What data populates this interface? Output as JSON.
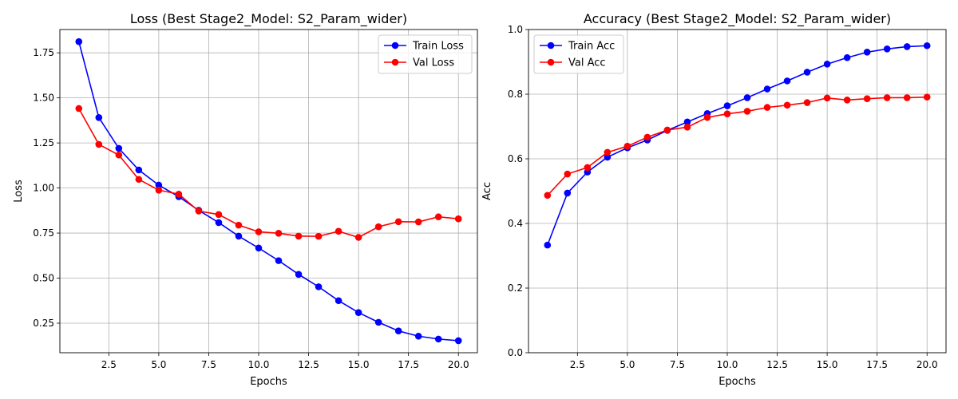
{
  "chart_data": [
    {
      "type": "line",
      "title": "Loss (Best Stage2_Model: S2_Param_wider)",
      "xlabel": "Epochs",
      "ylabel": "Loss",
      "xlim": [
        0.05,
        20.95
      ],
      "ylim": [
        0.0862,
        1.8792
      ],
      "xticks": [
        2.5,
        5.0,
        7.5,
        10.0,
        12.5,
        15.0,
        17.5,
        20.0
      ],
      "xtick_labels": [
        "2.5",
        "5.0",
        "7.5",
        "10.0",
        "12.5",
        "15.0",
        "17.5",
        "20.0"
      ],
      "yticks": [
        0.25,
        0.5,
        0.75,
        1.0,
        1.25,
        1.5,
        1.75
      ],
      "ytick_labels": [
        "0.25",
        "0.50",
        "0.75",
        "1.00",
        "1.25",
        "1.50",
        "1.75"
      ],
      "grid": true,
      "legend_position": "top-right",
      "x": [
        1,
        2,
        3,
        4,
        5,
        6,
        7,
        8,
        9,
        10,
        11,
        12,
        13,
        14,
        15,
        16,
        17,
        18,
        19,
        20
      ],
      "series": [
        {
          "name": "Train Loss",
          "color": "#0000ff",
          "values": [
            1.812,
            1.391,
            1.22,
            1.1,
            1.016,
            0.952,
            0.876,
            0.808,
            0.733,
            0.667,
            0.597,
            0.521,
            0.452,
            0.375,
            0.309,
            0.255,
            0.207,
            0.178,
            0.162,
            0.153
          ]
        },
        {
          "name": "Val Loss",
          "color": "#ff0000",
          "values": [
            1.441,
            1.242,
            1.183,
            1.048,
            0.988,
            0.966,
            0.872,
            0.853,
            0.794,
            0.757,
            0.749,
            0.733,
            0.732,
            0.76,
            0.726,
            0.785,
            0.813,
            0.812,
            0.84,
            0.829
          ]
        }
      ]
    },
    {
      "type": "line",
      "title": "Accuracy (Best Stage2_Model: S2_Param_wider)",
      "xlabel": "Epochs",
      "ylabel": "Acc",
      "xlim": [
        0.05,
        20.95
      ],
      "ylim": [
        0.0,
        1.0
      ],
      "xticks": [
        2.5,
        5.0,
        7.5,
        10.0,
        12.5,
        15.0,
        17.5,
        20.0
      ],
      "xtick_labels": [
        "2.5",
        "5.0",
        "7.5",
        "10.0",
        "12.5",
        "15.0",
        "17.5",
        "20.0"
      ],
      "yticks": [
        0.0,
        0.2,
        0.4,
        0.6,
        0.8,
        1.0
      ],
      "ytick_labels": [
        "0.0",
        "0.2",
        "0.4",
        "0.6",
        "0.8",
        "1.0"
      ],
      "grid": true,
      "legend_position": "top-left",
      "x": [
        1,
        2,
        3,
        4,
        5,
        6,
        7,
        8,
        9,
        10,
        11,
        12,
        13,
        14,
        15,
        16,
        17,
        18,
        19,
        20
      ],
      "series": [
        {
          "name": "Train Acc",
          "color": "#0000ff",
          "values": [
            0.333,
            0.494,
            0.559,
            0.605,
            0.634,
            0.658,
            0.688,
            0.714,
            0.74,
            0.764,
            0.789,
            0.816,
            0.841,
            0.868,
            0.893,
            0.913,
            0.93,
            0.94,
            0.947,
            0.95
          ]
        },
        {
          "name": "Val Acc",
          "color": "#ff0000",
          "values": [
            0.487,
            0.553,
            0.573,
            0.62,
            0.639,
            0.667,
            0.689,
            0.698,
            0.728,
            0.739,
            0.747,
            0.759,
            0.766,
            0.774,
            0.788,
            0.782,
            0.786,
            0.789,
            0.789,
            0.791
          ]
        }
      ]
    }
  ]
}
